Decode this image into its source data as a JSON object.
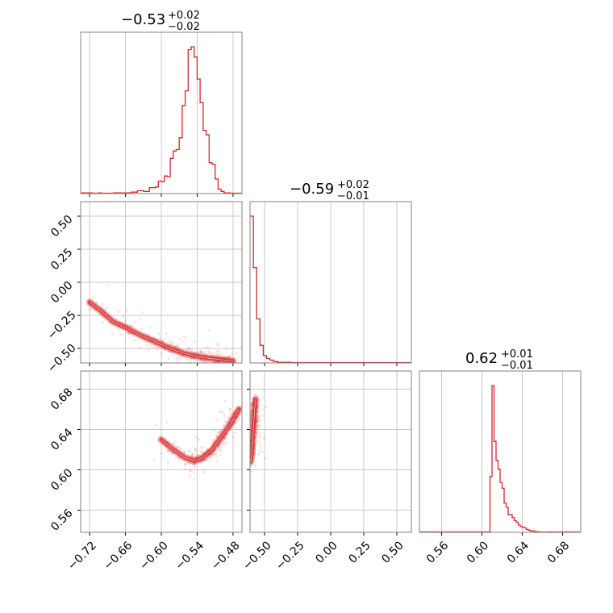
{
  "chart_data": {
    "type": "corner",
    "color": "#d62728",
    "grid": true,
    "parameters": [
      {
        "median": -0.53,
        "plus": 0.02,
        "minus": 0.02,
        "title": {
          "main": "−0.53",
          "sup": "+0.02",
          "sub": "−0.02"
        },
        "range": [
          -0.735,
          -0.465
        ],
        "ticks": [
          -0.72,
          -0.66,
          -0.6,
          -0.54,
          -0.48
        ],
        "tick_labels": [
          "−0.72",
          "−0.66",
          "−0.60",
          "−0.54",
          "−0.48"
        ]
      },
      {
        "median": -0.59,
        "plus": 0.02,
        "minus": 0.01,
        "title": {
          "main": "−0.59",
          "sup": "+0.02",
          "sub": "−0.01"
        },
        "range": [
          -0.61,
          0.61
        ],
        "ticks": [
          -0.5,
          -0.25,
          0.0,
          0.25,
          0.5
        ],
        "tick_labels": [
          "−0.50",
          "−0.25",
          "0.00",
          "0.25",
          "0.50"
        ]
      },
      {
        "median": 0.62,
        "plus": 0.01,
        "minus": 0.01,
        "title": {
          "main": "0.62",
          "sup": "+0.01",
          "sub": "−0.01"
        },
        "range": [
          0.538,
          0.698
        ],
        "ticks": [
          0.56,
          0.6,
          0.64,
          0.68
        ],
        "tick_labels": [
          "0.56",
          "0.60",
          "0.64",
          "0.68"
        ]
      }
    ],
    "histograms": [
      {
        "param": 0,
        "bin_edges": [
          -0.735,
          -0.715,
          -0.705,
          -0.7,
          -0.69,
          -0.68,
          -0.67,
          -0.66,
          -0.65,
          -0.64,
          -0.63,
          -0.62,
          -0.61,
          -0.605,
          -0.6,
          -0.595,
          -0.59,
          -0.585,
          -0.58,
          -0.575,
          -0.57,
          -0.565,
          -0.56,
          -0.555,
          -0.55,
          -0.545,
          -0.54,
          -0.535,
          -0.53,
          -0.525,
          -0.52,
          -0.515,
          -0.51,
          -0.505,
          -0.5,
          -0.495,
          -0.49,
          -0.485,
          -0.48,
          -0.47,
          -0.465
        ],
        "counts": [
          0.005,
          0.0,
          0.005,
          0.0,
          0.0,
          0.005,
          0.005,
          0.005,
          0.01,
          0.02,
          0.015,
          0.04,
          0.045,
          0.085,
          0.08,
          0.12,
          0.115,
          0.24,
          0.29,
          0.3,
          0.38,
          0.6,
          0.7,
          0.98,
          1.0,
          0.93,
          0.78,
          0.62,
          0.43,
          0.4,
          0.21,
          0.2,
          0.1,
          0.03,
          0.015,
          0.005,
          0.005,
          0.0,
          0.0,
          0.0
        ]
      },
      {
        "param": 1,
        "bin_edges": [
          -0.61,
          -0.585,
          -0.56,
          -0.535,
          -0.51,
          -0.485,
          -0.46,
          -0.435,
          -0.4,
          -0.3,
          0.6,
          0.61
        ],
        "counts": [
          1.0,
          0.65,
          0.3,
          0.12,
          0.05,
          0.03,
          0.02,
          0.01,
          0.005,
          0.0,
          0.0
        ]
      },
      {
        "param": 2,
        "bin_edges": [
          0.538,
          0.608,
          0.61,
          0.612,
          0.614,
          0.616,
          0.618,
          0.62,
          0.622,
          0.624,
          0.626,
          0.628,
          0.63,
          0.632,
          0.634,
          0.636,
          0.638,
          0.64,
          0.642,
          0.644,
          0.646,
          0.648,
          0.65,
          0.652,
          0.654,
          0.656,
          0.658,
          0.66,
          0.662,
          0.664,
          0.666,
          0.698
        ],
        "counts": [
          0.0,
          0.38,
          1.0,
          0.62,
          0.49,
          0.43,
          0.34,
          0.3,
          0.2,
          0.17,
          0.12,
          0.12,
          0.1,
          0.08,
          0.07,
          0.05,
          0.04,
          0.035,
          0.03,
          0.02,
          0.015,
          0.01,
          0.01,
          0.005,
          0.005,
          0.003,
          0.003,
          0.002,
          0.002,
          0.002,
          0.0
        ]
      }
    ],
    "ridges": [
      {
        "xparam": 0,
        "yparam": 1,
        "points": [
          [
            -0.72,
            -0.15
          ],
          [
            -0.7,
            -0.22
          ],
          [
            -0.68,
            -0.3
          ],
          [
            -0.66,
            -0.34
          ],
          [
            -0.64,
            -0.39
          ],
          [
            -0.62,
            -0.43
          ],
          [
            -0.6,
            -0.47
          ],
          [
            -0.58,
            -0.51
          ],
          [
            -0.56,
            -0.54
          ],
          [
            -0.54,
            -0.56
          ],
          [
            -0.52,
            -0.575
          ],
          [
            -0.5,
            -0.585
          ],
          [
            -0.48,
            -0.595
          ]
        ]
      },
      {
        "xparam": 0,
        "yparam": 2,
        "points": [
          [
            -0.6,
            0.63
          ],
          [
            -0.58,
            0.62
          ],
          [
            -0.56,
            0.612
          ],
          [
            -0.545,
            0.609
          ],
          [
            -0.53,
            0.612
          ],
          [
            -0.515,
            0.62
          ],
          [
            -0.5,
            0.632
          ],
          [
            -0.485,
            0.645
          ],
          [
            -0.47,
            0.66
          ]
        ]
      },
      {
        "xparam": 1,
        "yparam": 2,
        "points": [
          [
            -0.605,
            0.608
          ],
          [
            -0.6,
            0.612
          ],
          [
            -0.595,
            0.62
          ],
          [
            -0.59,
            0.63
          ],
          [
            -0.585,
            0.64
          ],
          [
            -0.58,
            0.65
          ],
          [
            -0.575,
            0.66
          ],
          [
            -0.57,
            0.67
          ]
        ]
      }
    ]
  }
}
